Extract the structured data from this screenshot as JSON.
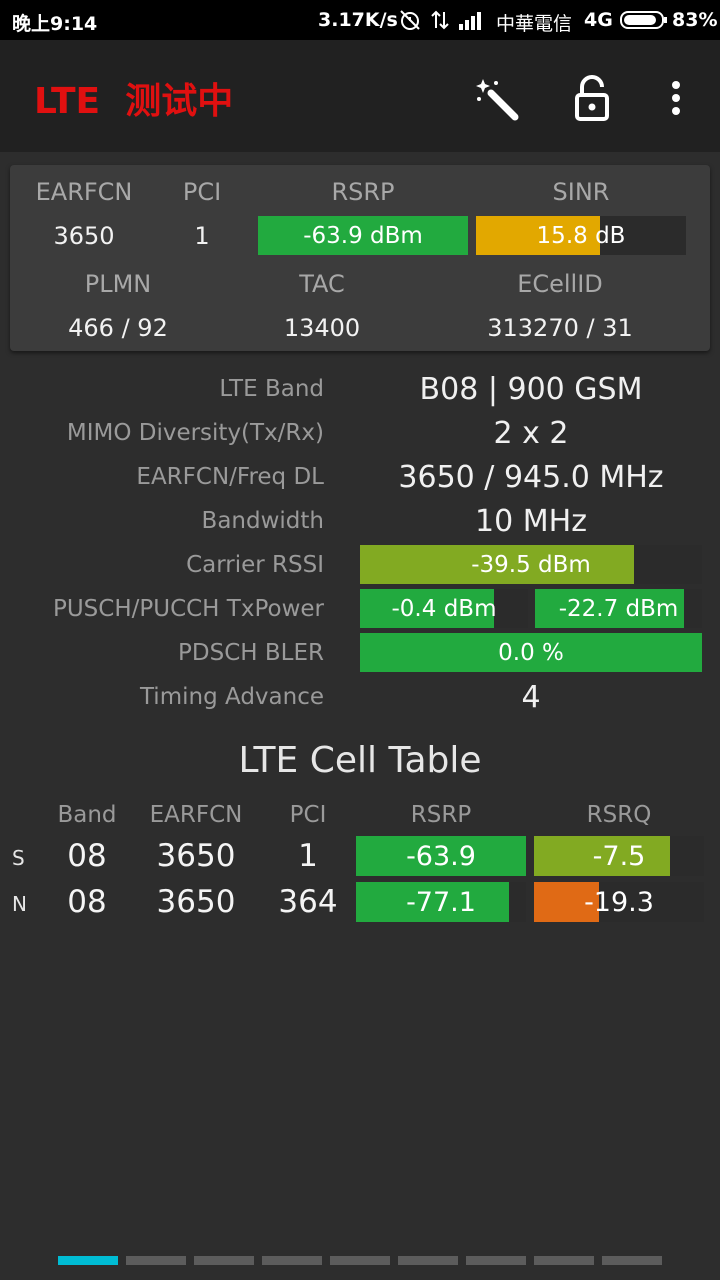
{
  "status_bar": {
    "time": "晚上9:14",
    "net_speed": "3.17K/s",
    "carrier": "中華電信",
    "network_type": "4G",
    "battery": "83%"
  },
  "toolbar": {
    "title": "LTE  测试中",
    "icons": [
      "magic-wand-icon",
      "lock-open-icon",
      "more-vert-icon"
    ]
  },
  "serving_card": {
    "headers": {
      "earfcn": "EARFCN",
      "pci": "PCI",
      "rsrp": "RSRP",
      "sinr": "SINR",
      "plmn": "PLMN",
      "tac": "TAC",
      "ecellid": "ECellID"
    },
    "earfcn": "3650",
    "pci": "1",
    "rsrp": {
      "text": "-63.9 dBm",
      "fill": 1.0,
      "color": "#22aa3f"
    },
    "sinr": {
      "text": "15.8 dB",
      "fill": 0.59,
      "color": "#e2a800"
    },
    "plmn": "466 / 92",
    "tac": "13400",
    "ecellid": "313270 / 31"
  },
  "details": [
    {
      "label": "LTE Band",
      "value": "B08 | 900 GSM"
    },
    {
      "label": "MIMO Diversity(Tx/Rx)",
      "value": "2 x 2"
    },
    {
      "label": "EARFCN/Freq DL",
      "value": "3650 / 945.0 MHz"
    },
    {
      "label": "Bandwidth",
      "value": "10 MHz"
    },
    {
      "label": "Carrier RSSI",
      "bar": {
        "text": "-39.5 dBm",
        "fill": 0.8,
        "color": "#82aa22"
      }
    },
    {
      "label": "PUSCH/PUCCH TxPower",
      "bar": {
        "text": "-0.4 dBm",
        "fill": 0.8,
        "color": "#22aa3f"
      },
      "bar2": {
        "text": "-22.7 dBm",
        "fill": 0.89,
        "color": "#22aa3f"
      }
    },
    {
      "label": "PDSCH BLER",
      "bar": {
        "text": "0.0 %",
        "fill": 1.0,
        "color": "#22aa3f"
      }
    },
    {
      "label": "Timing Advance",
      "value": "4"
    }
  ],
  "cell_table": {
    "title": "LTE Cell Table",
    "columns": [
      "Band",
      "EARFCN",
      "PCI",
      "RSRP",
      "RSRQ"
    ],
    "rows": [
      {
        "type": "S",
        "band": "08",
        "earfcn": "3650",
        "pci": "1",
        "rsrp": {
          "text": "-63.9",
          "fill": 1.0,
          "color": "#22aa3f"
        },
        "rsrq": {
          "text": "-7.5",
          "fill": 0.8,
          "color": "#82aa22"
        }
      },
      {
        "type": "N",
        "band": "08",
        "earfcn": "3650",
        "pci": "364",
        "rsrp": {
          "text": "-77.1",
          "fill": 0.9,
          "color": "#22aa3f"
        },
        "rsrq": {
          "text": "-19.3",
          "fill": 0.38,
          "color": "#e06a15"
        }
      }
    ]
  },
  "page_indicator": {
    "count": 9,
    "active": 0,
    "active_color": "#00bcd4"
  }
}
